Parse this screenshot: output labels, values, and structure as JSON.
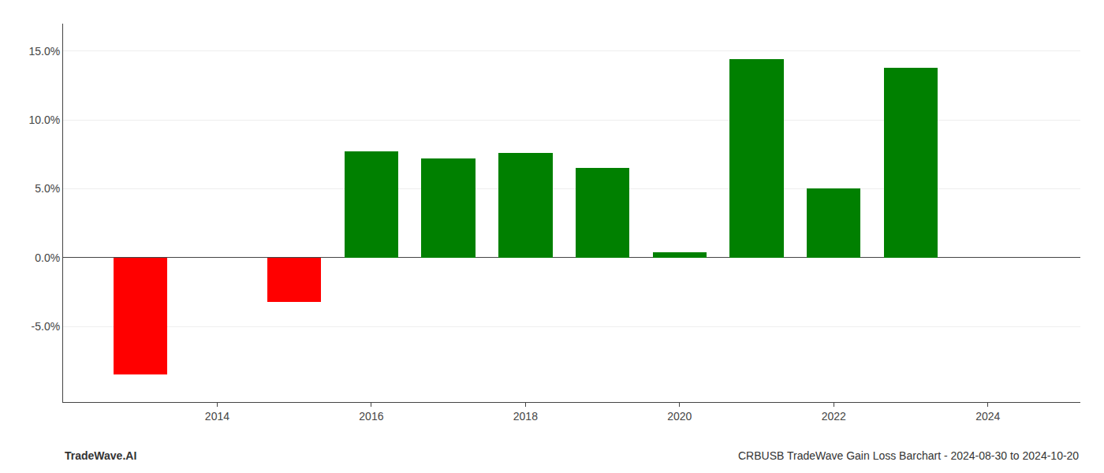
{
  "chart_data": {
    "type": "bar",
    "title": "CRBUSB TradeWave Gain Loss Barchart - 2024-08-30 to 2024-10-20",
    "annotations": [
      "TradeWave.AI"
    ],
    "x": [
      2013,
      2015,
      2016,
      2017,
      2018,
      2019,
      2020,
      2021,
      2022,
      2023
    ],
    "values": [
      -8.5,
      -3.2,
      7.7,
      7.2,
      7.6,
      6.5,
      0.4,
      14.4,
      5.0,
      13.8
    ],
    "colors": [
      "#ff0000",
      "#ff0000",
      "#008000",
      "#008000",
      "#008000",
      "#008000",
      "#008000",
      "#008000",
      "#008000",
      "#008000"
    ],
    "xlim": [
      2012.0,
      2025.2
    ],
    "xticks": [
      2014,
      2016,
      2018,
      2020,
      2022,
      2024
    ],
    "ylim": [
      -10.5,
      17.0
    ],
    "yticks": [
      {
        "value": -5.0,
        "label": "-5.0%"
      },
      {
        "value": 0.0,
        "label": "0.0%"
      },
      {
        "value": 5.0,
        "label": "5.0%"
      },
      {
        "value": 10.0,
        "label": "10.0%"
      },
      {
        "value": 15.0,
        "label": "15.0%"
      }
    ],
    "grid": true
  }
}
